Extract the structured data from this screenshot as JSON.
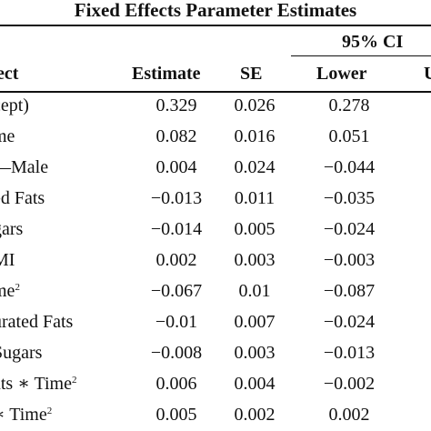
{
  "title": "Fixed Effects Parameter Estimates",
  "ci_label": "95% CI",
  "headers": {
    "effect": "ect",
    "estimate": "Estimate",
    "se": "SE",
    "lower": "Lower",
    "upper": "U"
  },
  "rows": [
    {
      "effect": "cept)",
      "estimate": "0.329",
      "se": "0.026",
      "lower": "0.278"
    },
    {
      "effect": "me",
      "estimate": "0.082",
      "se": "0.016",
      "lower": "0.051"
    },
    {
      "effect": "—Male",
      "estimate": "0.004",
      "se": "0.024",
      "lower": "−0.044"
    },
    {
      "effect": "ed Fats",
      "estimate": "−0.013",
      "se": "0.011",
      "lower": "−0.035"
    },
    {
      "effect": "gars",
      "estimate": "−0.014",
      "se": "0.005",
      "lower": "−0.024"
    },
    {
      "effect": "MI",
      "estimate": "0.002",
      "se": "0.003",
      "lower": "−0.003"
    },
    {
      "effect": "me",
      "sup": "2",
      "estimate": "−0.067",
      "se": "0.01",
      "lower": "−0.087"
    },
    {
      "effect": "urated Fats",
      "estimate": "−0.01",
      "se": "0.007",
      "lower": "−0.024"
    },
    {
      "effect": "Sugars",
      "estimate": "−0.008",
      "se": "0.003",
      "lower": "−0.013"
    },
    {
      "effect": "ats ∗ Time",
      "sup": "2",
      "estimate": "0.006",
      "se": "0.004",
      "lower": "−0.002"
    },
    {
      "effect": "∗ Time",
      "sup": "2",
      "estimate": "0.005",
      "se": "0.002",
      "lower": "0.002"
    }
  ]
}
